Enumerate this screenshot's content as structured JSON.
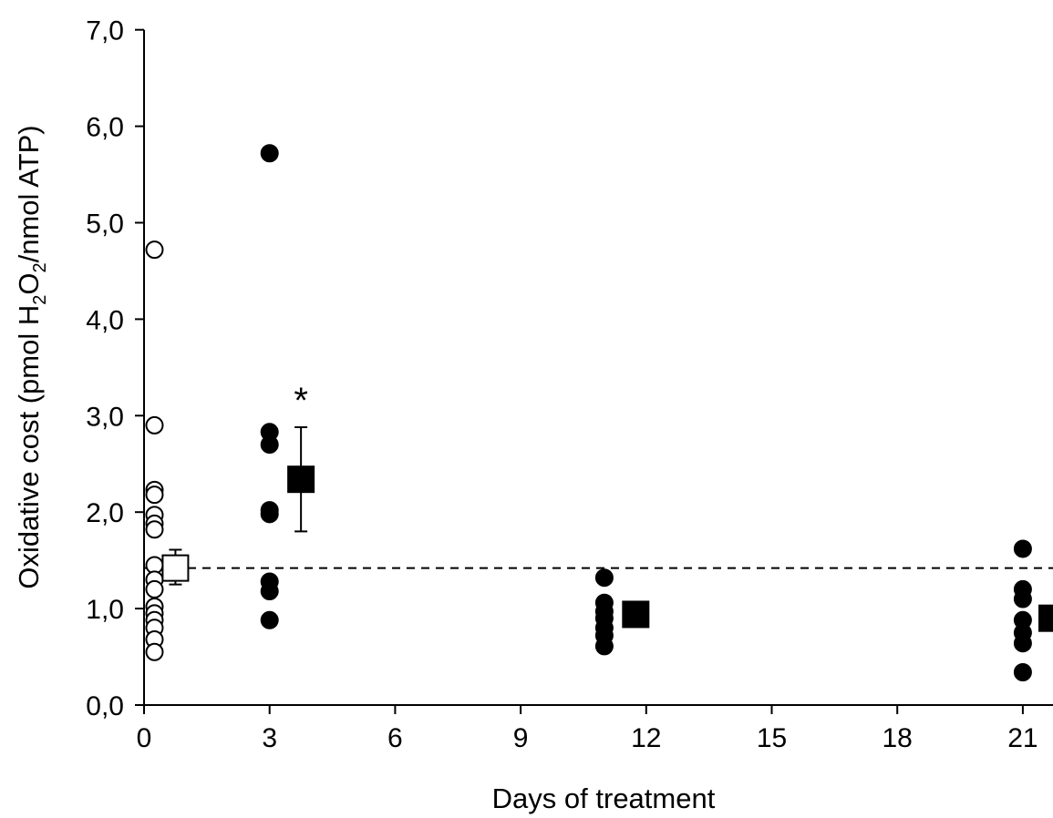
{
  "chart_data": {
    "type": "scatter",
    "title": "",
    "xlabel": "Days of treatment",
    "ylabel": {
      "before": "Oxidative cost (pmol H",
      "sub1": "2",
      "middle": "O",
      "sub2": "2",
      "after": "/nmol ATP)"
    },
    "xlim": [
      0,
      21.7
    ],
    "ylim": [
      0,
      7
    ],
    "xticks": [
      0,
      3,
      6,
      9,
      12,
      15,
      18,
      21
    ],
    "xtick_labels": [
      "0",
      "3",
      "6",
      "9",
      "12",
      "15",
      "18",
      "21"
    ],
    "yticks": [
      0,
      1,
      2,
      3,
      4,
      5,
      6,
      7
    ],
    "ytick_labels": [
      "0,0",
      "1,0",
      "2,0",
      "3,0",
      "4,0",
      "5,0",
      "6,0",
      "7,0"
    ],
    "grid": false,
    "reference_line": {
      "y": 1.42,
      "style": "dashed"
    },
    "series": [
      {
        "marker": "open-circle",
        "points": [
          {
            "x": 0.25,
            "y": 4.72
          },
          {
            "x": 0.25,
            "y": 2.9
          },
          {
            "x": 0.25,
            "y": 2.23
          },
          {
            "x": 0.25,
            "y": 2.18
          },
          {
            "x": 0.25,
            "y": 1.97
          },
          {
            "x": 0.25,
            "y": 1.88
          },
          {
            "x": 0.25,
            "y": 1.82
          },
          {
            "x": 0.25,
            "y": 1.45
          },
          {
            "x": 0.25,
            "y": 1.3
          },
          {
            "x": 0.25,
            "y": 1.2
          },
          {
            "x": 0.25,
            "y": 1.02
          },
          {
            "x": 0.25,
            "y": 0.95
          },
          {
            "x": 0.25,
            "y": 0.88
          },
          {
            "x": 0.25,
            "y": 0.8
          },
          {
            "x": 0.25,
            "y": 0.68
          },
          {
            "x": 0.25,
            "y": 0.55
          }
        ]
      },
      {
        "marker": "filled-circle",
        "points": [
          {
            "x": 3,
            "y": 5.72
          },
          {
            "x": 3,
            "y": 2.83
          },
          {
            "x": 3,
            "y": 2.7
          },
          {
            "x": 3,
            "y": 2.02
          },
          {
            "x": 3,
            "y": 1.98
          },
          {
            "x": 3,
            "y": 1.28
          },
          {
            "x": 3,
            "y": 1.18
          },
          {
            "x": 3,
            "y": 0.88
          },
          {
            "x": 11,
            "y": 1.32
          },
          {
            "x": 11,
            "y": 1.06
          },
          {
            "x": 11,
            "y": 0.97
          },
          {
            "x": 11,
            "y": 0.9
          },
          {
            "x": 11,
            "y": 0.8
          },
          {
            "x": 11,
            "y": 0.72
          },
          {
            "x": 11,
            "y": 0.61
          },
          {
            "x": 21,
            "y": 1.62
          },
          {
            "x": 21,
            "y": 1.2
          },
          {
            "x": 21,
            "y": 1.1
          },
          {
            "x": 21,
            "y": 0.88
          },
          {
            "x": 21,
            "y": 0.75
          },
          {
            "x": 21,
            "y": 0.64
          },
          {
            "x": 21,
            "y": 0.34
          }
        ]
      }
    ],
    "means": [
      {
        "x": 0.75,
        "y": 1.42,
        "err_low": 1.25,
        "err_high": 1.61,
        "marker": "open-square"
      },
      {
        "x": 3.75,
        "y": 2.34,
        "err_low": 1.8,
        "err_high": 2.88,
        "marker": "filled-square"
      },
      {
        "x": 11.75,
        "y": 0.94,
        "err_low": 0.94,
        "err_high": 0.94,
        "marker": "filled-square"
      },
      {
        "x": 21.7,
        "y": 0.9,
        "err_low": 0.9,
        "err_high": 0.9,
        "marker": "filled-square"
      }
    ],
    "annotations": [
      {
        "text": "*",
        "x": 3.75,
        "y": 3.2
      }
    ]
  }
}
